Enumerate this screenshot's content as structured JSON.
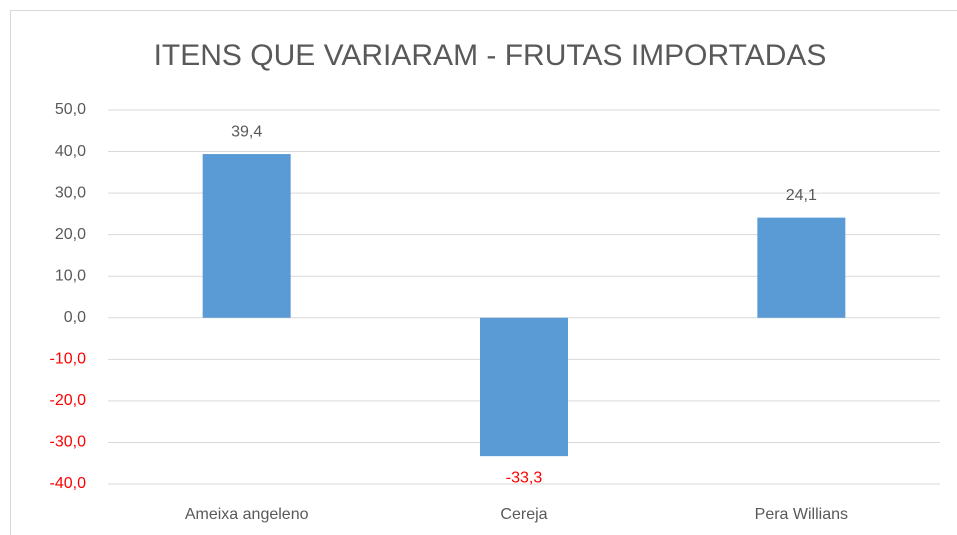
{
  "chart_data": {
    "type": "bar",
    "title": "ITENS QUE VARIARAM - FRUTAS IMPORTADAS",
    "categories": [
      "Ameixa angeleno",
      "Cereja",
      "Pera Willians"
    ],
    "values": [
      39.4,
      -33.3,
      24.1
    ],
    "value_labels": [
      "39,4",
      "-33,3",
      "24,1"
    ],
    "color": "#5b9bd5",
    "negative_label_color": "#ff0000",
    "ylim": [
      -40,
      50
    ],
    "yticks": [
      {
        "value": -40,
        "label": "-40,0"
      },
      {
        "value": -30,
        "label": "-30,0"
      },
      {
        "value": -20,
        "label": "-20,0"
      },
      {
        "value": -10,
        "label": "-10,0"
      },
      {
        "value": 0,
        "label": "0,0"
      },
      {
        "value": 10,
        "label": "10,0"
      },
      {
        "value": 20,
        "label": "20,0"
      },
      {
        "value": 30,
        "label": "30,0"
      },
      {
        "value": 40,
        "label": "40,0"
      },
      {
        "value": 50,
        "label": "50,0"
      }
    ],
    "grid": true
  }
}
